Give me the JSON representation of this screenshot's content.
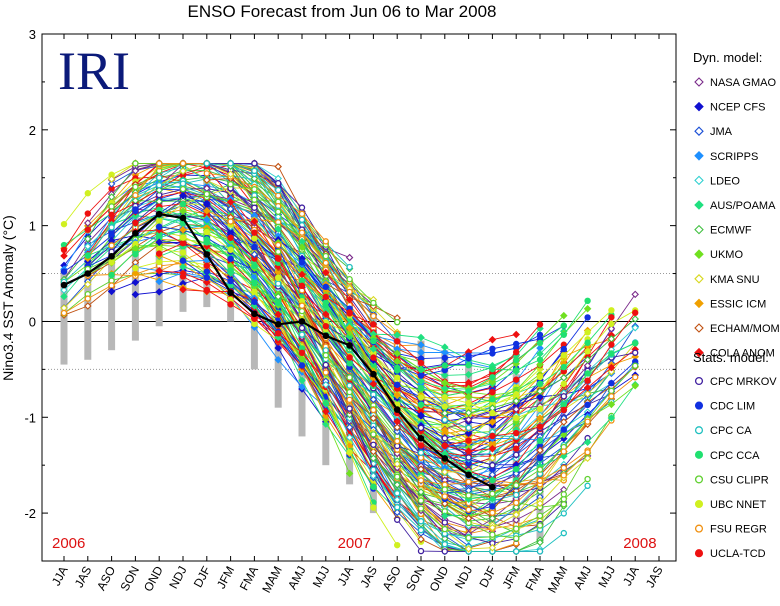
{
  "chart_data": {
    "type": "line",
    "title": "ENSO Forecast from Jun 06 to Mar 2008",
    "logo_text": "IRI",
    "ylabel": "Nino3.4 SST Anomaly (°C)",
    "xlabel": "",
    "ylim": [
      -2.5,
      3
    ],
    "yticks": [
      -2,
      -1,
      0,
      1,
      2,
      3
    ],
    "reference_lines": [
      0.5,
      -0.5
    ],
    "categories": [
      "JJA",
      "JAS",
      "ASO",
      "SON",
      "OND",
      "NDJ",
      "DJF",
      "JFM",
      "FMA",
      "MAM",
      "AMJ",
      "MJJ",
      "JJA",
      "JAS",
      "ASO",
      "SON",
      "OND",
      "NDJ",
      "DJF",
      "JFM",
      "FMA",
      "MAM",
      "AMJ",
      "MJJ",
      "JJA",
      "JAS"
    ],
    "year_labels": [
      {
        "text": "2006",
        "at": "JJA"
      },
      {
        "text": "2007",
        "at": "JJA"
      },
      {
        "text": "2008",
        "at": "JJA"
      }
    ],
    "observed": {
      "color": "#000000",
      "values": [
        0.38,
        0.5,
        0.68,
        0.92,
        1.12,
        1.08,
        0.7,
        0.3,
        0.08,
        -0.03,
        0.0,
        -0.15,
        -0.25,
        -0.55,
        -0.92,
        -1.22,
        -1.43,
        -1.6,
        -1.73
      ]
    },
    "legend": {
      "dyn_title": "Dyn. model:",
      "stats_title": "Stats. model:",
      "dyn": [
        {
          "name": "NASA GMAO",
          "color": "#7a2a8a",
          "marker": "diamond-open"
        },
        {
          "name": "NCEP CFS",
          "color": "#1010d0",
          "marker": "diamond"
        },
        {
          "name": "JMA",
          "color": "#1a4fd6",
          "marker": "diamond-open"
        },
        {
          "name": "SCRIPPS",
          "color": "#1e90ff",
          "marker": "diamond"
        },
        {
          "name": "LDEO",
          "color": "#30d0d0",
          "marker": "diamond-open"
        },
        {
          "name": "AUS/POAMA",
          "color": "#20e080",
          "marker": "diamond"
        },
        {
          "name": "ECMWF",
          "color": "#40c040",
          "marker": "diamond-open"
        },
        {
          "name": "UKMO",
          "color": "#70e020",
          "marker": "diamond"
        },
        {
          "name": "KMA SNU",
          "color": "#d8d820",
          "marker": "diamond-open"
        },
        {
          "name": "ESSIC ICM",
          "color": "#f0a000",
          "marker": "diamond"
        },
        {
          "name": "ECHAM/MOM",
          "color": "#c05010",
          "marker": "diamond-open"
        },
        {
          "name": "COLA ANOM",
          "color": "#ee1010",
          "marker": "diamond"
        }
      ],
      "stats": [
        {
          "name": "CPC MRKOV",
          "color": "#4020a0",
          "marker": "circle-open"
        },
        {
          "name": "CDC LIM",
          "color": "#1030e0",
          "marker": "circle"
        },
        {
          "name": "CPC CA",
          "color": "#20c0c0",
          "marker": "circle-open"
        },
        {
          "name": "CPC CCA",
          "color": "#20e070",
          "marker": "circle"
        },
        {
          "name": "CSU CLIPR",
          "color": "#60d030",
          "marker": "circle-open"
        },
        {
          "name": "UBC NNET",
          "color": "#d0f020",
          "marker": "circle"
        },
        {
          "name": "FSU REGR",
          "color": "#f09010",
          "marker": "circle-open"
        },
        {
          "name": "UCLA-TCD",
          "color": "#ee1010",
          "marker": "circle"
        }
      ]
    }
  }
}
